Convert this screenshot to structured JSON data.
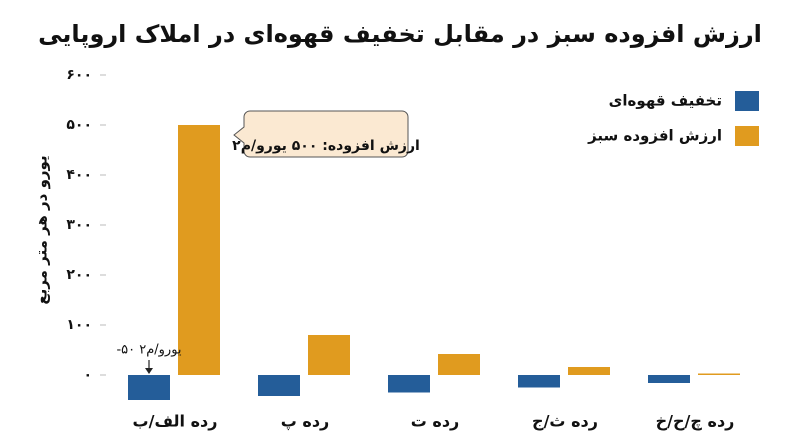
{
  "chart_data": {
    "type": "bar",
    "title": "ارزش افزوده سبز در مقابل تخفیف قهوه‌ای در املاک اروپایی",
    "y_label": "یورو در هر متر مربع",
    "categories": [
      "رده الف/ب",
      "رده پ",
      "رده ت",
      "رده ث/ج",
      "رده چ/ح/خ"
    ],
    "series": [
      {
        "name": "تخفیف قهوه‌ای",
        "color": "#245d99",
        "values": [
          -50,
          -42,
          -35,
          -25,
          -16
        ]
      },
      {
        "name": "ارزش افزوده سبز",
        "color": "#e09b1f",
        "values": [
          500,
          80,
          42,
          16,
          3
        ]
      }
    ],
    "ylim": [
      -60,
      620
    ],
    "yticks": [
      {
        "value": 0,
        "label": "۰"
      },
      {
        "value": 100,
        "label": "۱۰۰"
      },
      {
        "value": 200,
        "label": "۲۰۰"
      },
      {
        "value": 300,
        "label": "۳۰۰"
      },
      {
        "value": 400,
        "label": "۴۰۰"
      },
      {
        "value": 500,
        "label": "۵۰۰"
      },
      {
        "value": 600,
        "label": "۶۰۰"
      }
    ],
    "grid": false,
    "legend": "top-right",
    "annotations": [
      "ارزش افزوده: ۵۰۰ یورو/م۲",
      "-۵۰ یورو/م۲"
    ]
  }
}
